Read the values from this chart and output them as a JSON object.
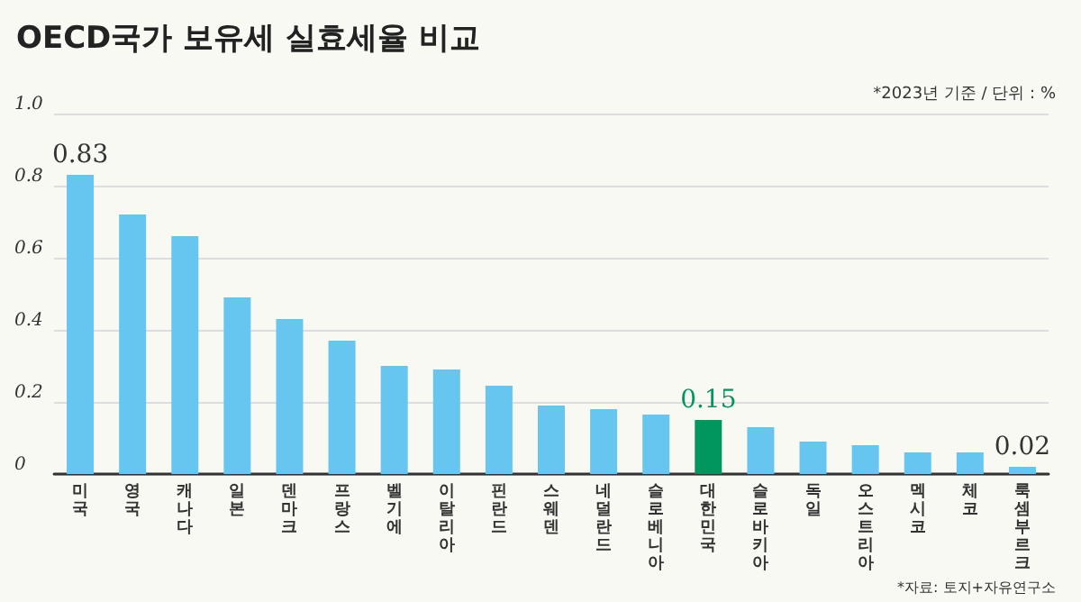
{
  "chart_data": {
    "type": "bar",
    "title": "OECD국가 보유세 실효세율 비교",
    "annotations": [
      "*2023년 기준 / 단위 : %",
      "*자료: 토지+자유연구소"
    ],
    "categories": [
      "미국",
      "영국",
      "캐나다",
      "일본",
      "덴마크",
      "프랑스",
      "벨기에",
      "이탈리아",
      "핀란드",
      "스웨덴",
      "네덜란드",
      "슬로베니아",
      "대한민국",
      "슬로바키아",
      "독일",
      "오스트리아",
      "멕시코",
      "체코",
      "룩셈부르크"
    ],
    "values": [
      0.83,
      0.72,
      0.66,
      0.49,
      0.43,
      0.37,
      0.3,
      0.29,
      0.245,
      0.19,
      0.18,
      0.165,
      0.15,
      0.13,
      0.09,
      0.08,
      0.06,
      0.06,
      0.02
    ],
    "value_labels": [
      "0.83",
      null,
      null,
      null,
      null,
      null,
      null,
      null,
      null,
      null,
      null,
      null,
      "0.15",
      null,
      null,
      null,
      null,
      null,
      "0.02"
    ],
    "colors": [
      "#66c6f0",
      "#66c6f0",
      "#66c6f0",
      "#66c6f0",
      "#66c6f0",
      "#66c6f0",
      "#66c6f0",
      "#66c6f0",
      "#66c6f0",
      "#66c6f0",
      "#66c6f0",
      "#66c6f0",
      "#00965e",
      "#66c6f0",
      "#66c6f0",
      "#66c6f0",
      "#66c6f0",
      "#66c6f0",
      "#66c6f0"
    ],
    "ylim": [
      0,
      1
    ],
    "yticks": [
      {
        "value": 0,
        "label": "0"
      },
      {
        "value": 0.2,
        "label": "0.2"
      },
      {
        "value": 0.4,
        "label": "0.4"
      },
      {
        "value": 0.6,
        "label": "0.6"
      },
      {
        "value": 0.8,
        "label": "0.8"
      },
      {
        "value": 1,
        "label": "1.0"
      }
    ],
    "grid": "y"
  }
}
